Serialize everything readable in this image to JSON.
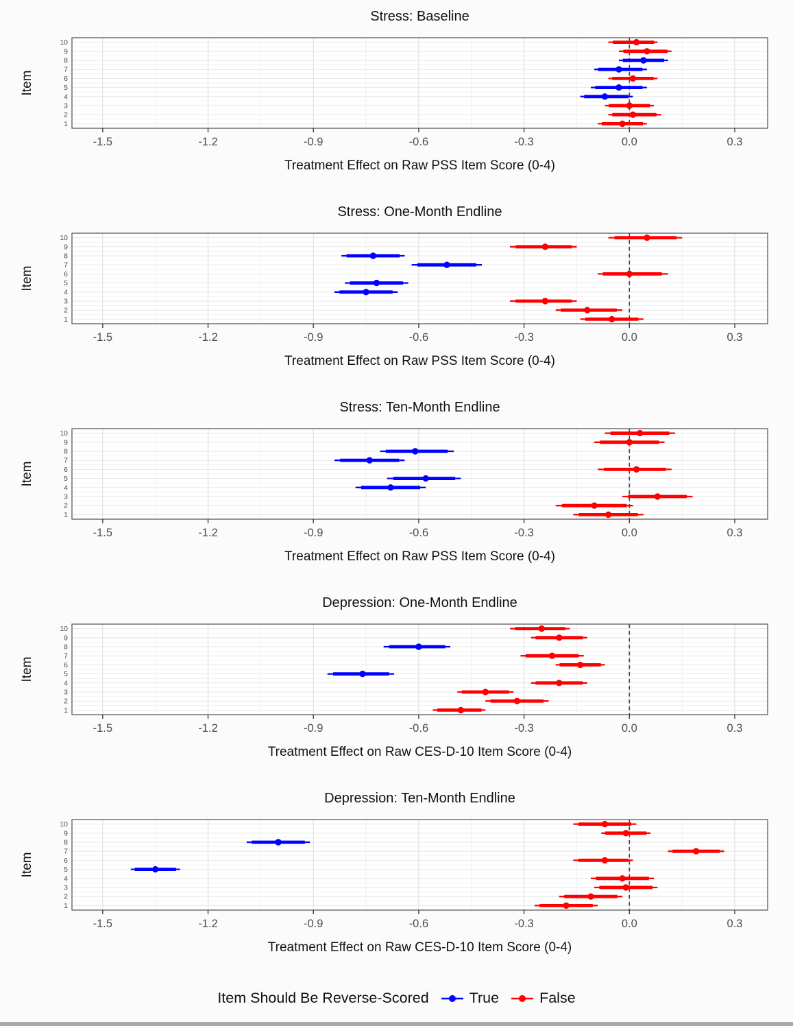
{
  "legend": {
    "title": "Item Should Be Reverse-Scored",
    "items": [
      {
        "label": "True",
        "color": "#0000FF"
      },
      {
        "label": "False",
        "color": "#FF0000"
      }
    ]
  },
  "axis": {
    "ticks": [
      -1.5,
      -1.2,
      -0.9,
      -0.6,
      -0.3,
      0.0,
      0.3
    ],
    "tick_labels": [
      "-1.5",
      "-1.2",
      "-0.9",
      "-0.6",
      "-0.3",
      "0.0",
      "0.3"
    ],
    "xlim": [
      -1.59,
      0.39
    ],
    "zero_reference_line": true,
    "grid": true
  },
  "chart_data": [
    {
      "type": "scatter",
      "mark": "pointrange",
      "title": "Stress: Baseline",
      "xlabel": "Treatment Effect on Raw PSS Item Score (0-4)",
      "ylabel": "Item",
      "y_categories": [
        1,
        2,
        3,
        4,
        5,
        6,
        7,
        8,
        9,
        10
      ],
      "legend_key": "reverse_scored",
      "items": [
        {
          "item": 1,
          "reverse": false,
          "est": -0.02,
          "lo": -0.09,
          "hi": 0.05
        },
        {
          "item": 2,
          "reverse": false,
          "est": 0.01,
          "lo": -0.06,
          "hi": 0.09
        },
        {
          "item": 3,
          "reverse": false,
          "est": 0.0,
          "lo": -0.07,
          "hi": 0.07
        },
        {
          "item": 4,
          "reverse": true,
          "est": -0.07,
          "lo": -0.14,
          "hi": 0.01
        },
        {
          "item": 5,
          "reverse": true,
          "est": -0.03,
          "lo": -0.11,
          "hi": 0.05
        },
        {
          "item": 6,
          "reverse": false,
          "est": 0.01,
          "lo": -0.06,
          "hi": 0.08
        },
        {
          "item": 7,
          "reverse": true,
          "est": -0.03,
          "lo": -0.1,
          "hi": 0.05
        },
        {
          "item": 8,
          "reverse": true,
          "est": 0.04,
          "lo": -0.03,
          "hi": 0.11
        },
        {
          "item": 9,
          "reverse": false,
          "est": 0.05,
          "lo": -0.03,
          "hi": 0.12
        },
        {
          "item": 10,
          "reverse": false,
          "est": 0.02,
          "lo": -0.06,
          "hi": 0.08
        }
      ]
    },
    {
      "type": "scatter",
      "mark": "pointrange",
      "title": "Stress: One-Month Endline",
      "xlabel": "Treatment Effect on Raw PSS Item Score (0-4)",
      "ylabel": "Item",
      "y_categories": [
        1,
        2,
        3,
        4,
        5,
        6,
        7,
        8,
        9,
        10
      ],
      "legend_key": "reverse_scored",
      "items": [
        {
          "item": 1,
          "reverse": false,
          "est": -0.05,
          "lo": -0.14,
          "hi": 0.04
        },
        {
          "item": 2,
          "reverse": false,
          "est": -0.12,
          "lo": -0.21,
          "hi": -0.02
        },
        {
          "item": 3,
          "reverse": false,
          "est": -0.24,
          "lo": -0.34,
          "hi": -0.15
        },
        {
          "item": 4,
          "reverse": true,
          "est": -0.75,
          "lo": -0.84,
          "hi": -0.66
        },
        {
          "item": 5,
          "reverse": true,
          "est": -0.72,
          "lo": -0.81,
          "hi": -0.63
        },
        {
          "item": 6,
          "reverse": false,
          "est": 0.0,
          "lo": -0.09,
          "hi": 0.11
        },
        {
          "item": 7,
          "reverse": true,
          "est": -0.52,
          "lo": -0.62,
          "hi": -0.42
        },
        {
          "item": 8,
          "reverse": true,
          "est": -0.73,
          "lo": -0.82,
          "hi": -0.64
        },
        {
          "item": 9,
          "reverse": false,
          "est": -0.24,
          "lo": -0.34,
          "hi": -0.15
        },
        {
          "item": 10,
          "reverse": false,
          "est": 0.05,
          "lo": -0.06,
          "hi": 0.15
        }
      ]
    },
    {
      "type": "scatter",
      "mark": "pointrange",
      "title": "Stress: Ten-Month Endline",
      "xlabel": "Treatment Effect on Raw PSS Item Score (0-4)",
      "ylabel": "Item",
      "y_categories": [
        1,
        2,
        3,
        4,
        5,
        6,
        7,
        8,
        9,
        10
      ],
      "legend_key": "reverse_scored",
      "items": [
        {
          "item": 1,
          "reverse": false,
          "est": -0.06,
          "lo": -0.16,
          "hi": 0.04
        },
        {
          "item": 2,
          "reverse": false,
          "est": -0.1,
          "lo": -0.21,
          "hi": 0.01
        },
        {
          "item": 3,
          "reverse": false,
          "est": 0.08,
          "lo": -0.02,
          "hi": 0.18
        },
        {
          "item": 4,
          "reverse": true,
          "est": -0.68,
          "lo": -0.78,
          "hi": -0.58
        },
        {
          "item": 5,
          "reverse": true,
          "est": -0.58,
          "lo": -0.69,
          "hi": -0.48
        },
        {
          "item": 6,
          "reverse": false,
          "est": 0.02,
          "lo": -0.09,
          "hi": 0.12
        },
        {
          "item": 7,
          "reverse": true,
          "est": -0.74,
          "lo": -0.84,
          "hi": -0.64
        },
        {
          "item": 8,
          "reverse": true,
          "est": -0.61,
          "lo": -0.71,
          "hi": -0.5
        },
        {
          "item": 9,
          "reverse": false,
          "est": 0.0,
          "lo": -0.1,
          "hi": 0.1
        },
        {
          "item": 10,
          "reverse": false,
          "est": 0.03,
          "lo": -0.07,
          "hi": 0.13
        }
      ]
    },
    {
      "type": "scatter",
      "mark": "pointrange",
      "title": "Depression: One-Month Endline",
      "xlabel": "Treatment Effect on Raw CES-D-10 Item Score (0-4)",
      "ylabel": "Item",
      "y_categories": [
        1,
        2,
        3,
        4,
        5,
        6,
        7,
        8,
        9,
        10
      ],
      "legend_key": "reverse_scored",
      "items": [
        {
          "item": 1,
          "reverse": false,
          "est": -0.48,
          "lo": -0.56,
          "hi": -0.41
        },
        {
          "item": 2,
          "reverse": false,
          "est": -0.32,
          "lo": -0.41,
          "hi": -0.23
        },
        {
          "item": 3,
          "reverse": false,
          "est": -0.41,
          "lo": -0.49,
          "hi": -0.33
        },
        {
          "item": 4,
          "reverse": false,
          "est": -0.2,
          "lo": -0.28,
          "hi": -0.12
        },
        {
          "item": 5,
          "reverse": true,
          "est": -0.76,
          "lo": -0.86,
          "hi": -0.67
        },
        {
          "item": 6,
          "reverse": false,
          "est": -0.14,
          "lo": -0.21,
          "hi": -0.07
        },
        {
          "item": 7,
          "reverse": false,
          "est": -0.22,
          "lo": -0.31,
          "hi": -0.13
        },
        {
          "item": 8,
          "reverse": true,
          "est": -0.6,
          "lo": -0.7,
          "hi": -0.51
        },
        {
          "item": 9,
          "reverse": false,
          "est": -0.2,
          "lo": -0.28,
          "hi": -0.12
        },
        {
          "item": 10,
          "reverse": false,
          "est": -0.25,
          "lo": -0.34,
          "hi": -0.17
        }
      ]
    },
    {
      "type": "scatter",
      "mark": "pointrange",
      "title": "Depression: Ten-Month Endline",
      "xlabel": "Treatment Effect on Raw CES-D-10 Item Score (0-4)",
      "ylabel": "Item",
      "y_categories": [
        1,
        2,
        3,
        4,
        5,
        6,
        7,
        8,
        9,
        10
      ],
      "legend_key": "reverse_scored",
      "items": [
        {
          "item": 1,
          "reverse": false,
          "est": -0.18,
          "lo": -0.27,
          "hi": -0.09
        },
        {
          "item": 2,
          "reverse": false,
          "est": -0.11,
          "lo": -0.2,
          "hi": -0.02
        },
        {
          "item": 3,
          "reverse": false,
          "est": -0.01,
          "lo": -0.1,
          "hi": 0.08
        },
        {
          "item": 4,
          "reverse": false,
          "est": -0.02,
          "lo": -0.11,
          "hi": 0.07
        },
        {
          "item": 5,
          "reverse": true,
          "est": -1.35,
          "lo": -1.42,
          "hi": -1.28
        },
        {
          "item": 6,
          "reverse": false,
          "est": -0.07,
          "lo": -0.16,
          "hi": 0.01
        },
        {
          "item": 7,
          "reverse": false,
          "est": 0.19,
          "lo": 0.11,
          "hi": 0.27
        },
        {
          "item": 8,
          "reverse": true,
          "est": -1.0,
          "lo": -1.09,
          "hi": -0.91
        },
        {
          "item": 9,
          "reverse": false,
          "est": -0.01,
          "lo": -0.08,
          "hi": 0.06
        },
        {
          "item": 10,
          "reverse": false,
          "est": -0.07,
          "lo": -0.16,
          "hi": 0.02
        }
      ]
    }
  ],
  "colors": {
    "reverse_true": "#0000FF",
    "reverse_false": "#FF0000",
    "zero_line": "#4a4a4a",
    "panel_border": "#5b5b5b",
    "tick_label": "#4d4d4d"
  }
}
